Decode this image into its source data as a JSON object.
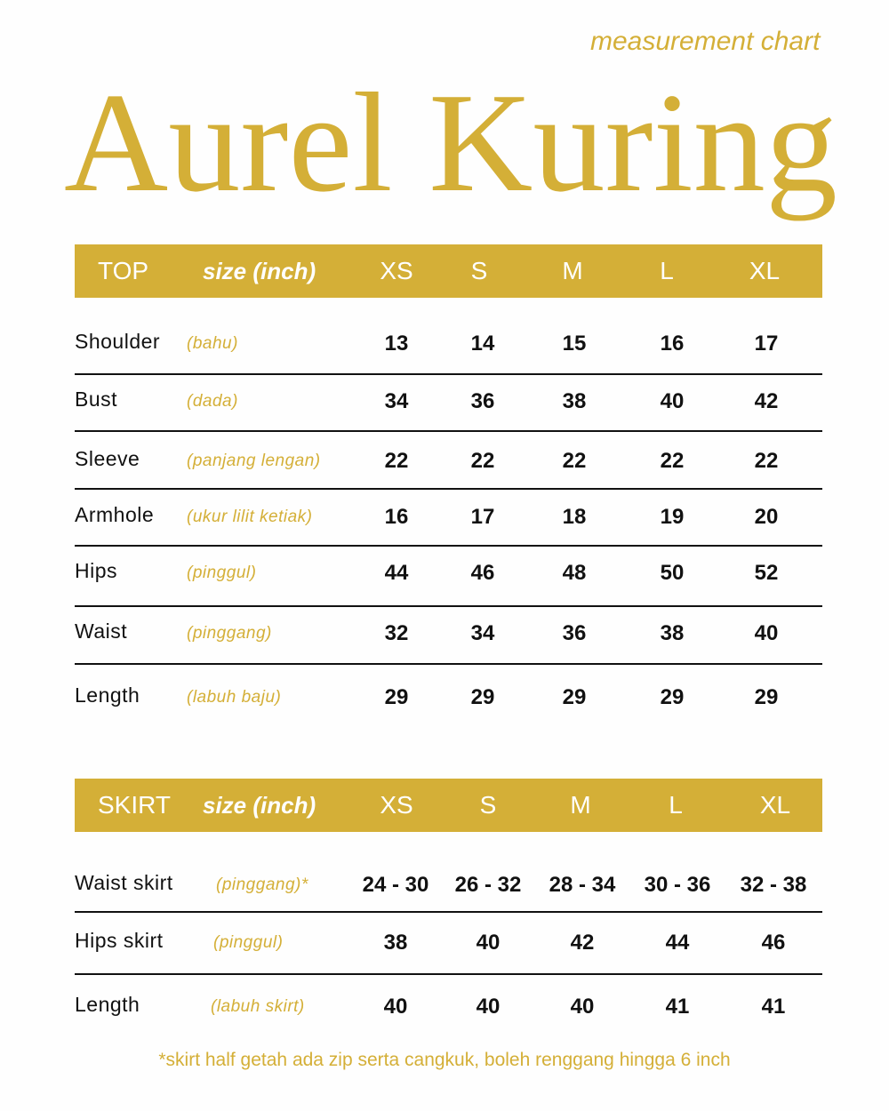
{
  "title": "Aurel Kuring",
  "subtitle": "measurement chart",
  "accent_color": "#d4af37",
  "sizes": [
    "XS",
    "S",
    "M",
    "L",
    "XL"
  ],
  "top": {
    "heading": "TOP",
    "unit_label": "size (inch)",
    "rows": [
      {
        "label": "Shoulder",
        "local": "(bahu)",
        "values": [
          "13",
          "14",
          "15",
          "16",
          "17"
        ]
      },
      {
        "label": "Bust",
        "local": "(dada)",
        "values": [
          "34",
          "36",
          "38",
          "40",
          "42"
        ]
      },
      {
        "label": "Sleeve",
        "local": "(panjang lengan)",
        "values": [
          "22",
          "22",
          "22",
          "22",
          "22"
        ]
      },
      {
        "label": "Armhole",
        "local": "(ukur lilit ketiak)",
        "values": [
          "16",
          "17",
          "18",
          "19",
          "20"
        ]
      },
      {
        "label": "Hips",
        "local": "(pinggul)",
        "values": [
          "44",
          "46",
          "48",
          "50",
          "52"
        ]
      },
      {
        "label": "Waist",
        "local": "(pinggang)",
        "values": [
          "32",
          "34",
          "36",
          "38",
          "40"
        ]
      },
      {
        "label": "Length",
        "local": "(labuh baju)",
        "values": [
          "29",
          "29",
          "29",
          "29",
          "29"
        ]
      }
    ]
  },
  "skirt": {
    "heading": "SKIRT",
    "unit_label": "size (inch)",
    "rows": [
      {
        "label": "Waist skirt",
        "local": "(pinggang)*",
        "values": [
          "24 - 30",
          "26 - 32",
          "28 - 34",
          "30 - 36",
          "32 - 38"
        ]
      },
      {
        "label": "Hips skirt",
        "local": "(pinggul)",
        "values": [
          "38",
          "40",
          "42",
          "44",
          "46"
        ]
      },
      {
        "label": "Length",
        "local": "(labuh skirt)",
        "values": [
          "40",
          "40",
          "40",
          "41",
          "41"
        ]
      }
    ]
  },
  "footnote": "*skirt half getah ada zip serta cangkuk, boleh renggang hingga 6 inch"
}
